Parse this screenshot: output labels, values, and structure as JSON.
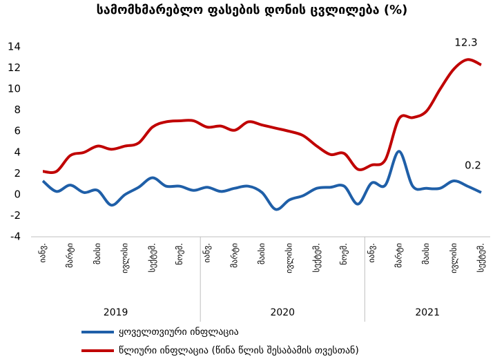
{
  "chart_data": {
    "type": "line",
    "title": "სამომხმარებლო ფასების დონის ცვლილება (%)",
    "categories": [
      "იანვ.",
      null,
      "მარტი",
      null,
      "მაისი",
      null,
      "ივლისი",
      null,
      "სექტემ.",
      null,
      "ნოემ.",
      null,
      "იანვ.",
      null,
      "მარტი",
      null,
      "მაისი",
      null,
      "ივლისი",
      null,
      "სექტემ.",
      null,
      "ნოემ.",
      null,
      "იანვ.",
      null,
      "მარტი",
      null,
      "მაისი",
      null,
      "ივლისი",
      null,
      "სექტემ."
    ],
    "years": [
      "2019",
      "2020",
      "2021"
    ],
    "series": [
      {
        "name": "ყოველთვიური ინფლაცია",
        "color": "#1f5fa8",
        "values": [
          1.3,
          0.3,
          0.9,
          0.2,
          0.4,
          -1.0,
          0.0,
          0.7,
          1.6,
          0.8,
          0.8,
          0.4,
          0.7,
          0.3,
          0.6,
          0.8,
          0.2,
          -1.4,
          -0.5,
          -0.1,
          0.6,
          0.7,
          0.8,
          -0.9,
          1.1,
          0.9,
          4.1,
          0.8,
          0.6,
          0.6,
          1.3,
          0.8,
          0.2
        ]
      },
      {
        "name": "წლიური ინფლაცია (წინა წლის შესაბამის თვესთან)",
        "color": "#c00000",
        "values": [
          2.2,
          2.2,
          3.7,
          4.0,
          4.6,
          4.3,
          4.6,
          4.9,
          6.4,
          6.9,
          7.0,
          7.0,
          6.4,
          6.5,
          6.1,
          6.9,
          6.6,
          6.3,
          6.0,
          5.6,
          4.6,
          3.8,
          3.9,
          2.4,
          2.8,
          3.3,
          7.2,
          7.3,
          7.9,
          10.0,
          11.9,
          12.8,
          12.3
        ]
      }
    ],
    "annotations": [
      "12.3",
      "0.2"
    ],
    "ylim": [
      -4,
      14
    ],
    "yticks": [
      -4,
      -2,
      0,
      2,
      4,
      6,
      8,
      10,
      12,
      14
    ],
    "grid": false
  }
}
